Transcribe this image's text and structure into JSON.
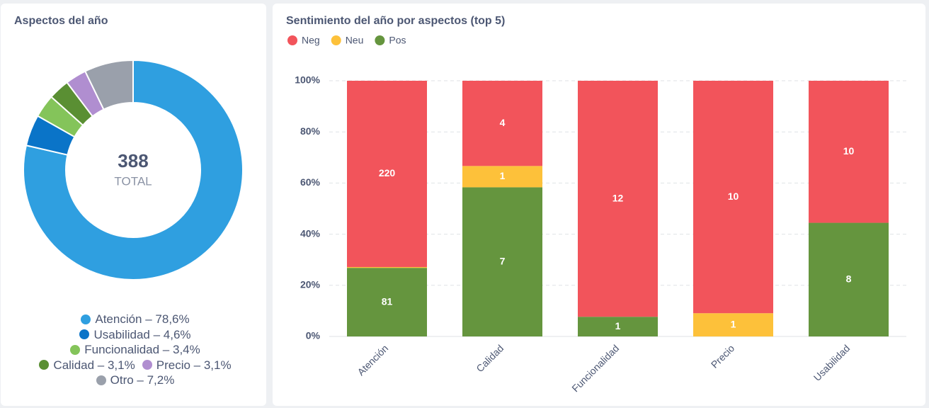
{
  "chart_data": [
    {
      "type": "pie",
      "title": "Aspectos del año",
      "total": 388,
      "total_label": "TOTAL",
      "hole": true,
      "categories": [
        "Atención – 78,6%",
        "Usabilidad – 4,6%",
        "Funcionalidad – 3,4%",
        "Calidad – 3,1%",
        "Precio – 3,1%",
        "Otro – 7,2%"
      ],
      "values": [
        78.6,
        4.6,
        3.4,
        3.1,
        3.1,
        7.2
      ],
      "colors": [
        "#2f9fe0",
        "#0a74c8",
        "#84c45a",
        "#5a8f33",
        "#b08ed0",
        "#9aa0ab"
      ]
    },
    {
      "type": "bar",
      "stacking": "percent",
      "title": "Sentimiento del año por aspectos (top 5)",
      "grid": true,
      "legend": "top-left",
      "categories": [
        "Atención",
        "Calidad",
        "Funcionalidad",
        "Precio",
        "Usabilidad"
      ],
      "series": [
        {
          "name": "Neg",
          "color": "#f2545b",
          "values": [
            220,
            4,
            12,
            10,
            10
          ]
        },
        {
          "name": "Neu",
          "color": "#fdc13a",
          "values": [
            1,
            1,
            null,
            1,
            null
          ]
        },
        {
          "name": "Pos",
          "color": "#65953e",
          "values": [
            81,
            7,
            1,
            null,
            8
          ]
        }
      ],
      "ylim": [
        0,
        100
      ],
      "yticks": [
        {
          "value": 0,
          "label": "0%"
        },
        {
          "value": 20,
          "label": "20%"
        },
        {
          "value": 40,
          "label": "40%"
        },
        {
          "value": 60,
          "label": "60%"
        },
        {
          "value": 80,
          "label": "80%"
        },
        {
          "value": 100,
          "label": "100%"
        }
      ]
    }
  ]
}
